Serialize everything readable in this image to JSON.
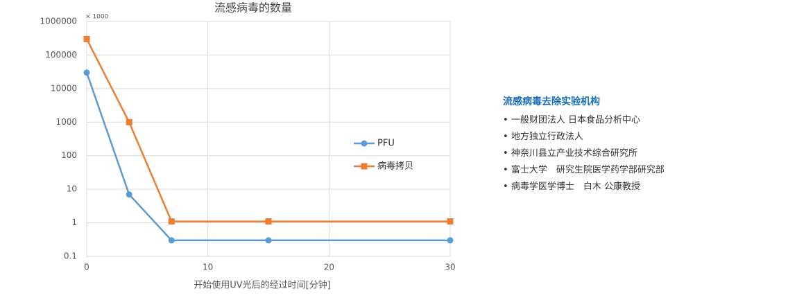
{
  "chart_data": {
    "type": "line",
    "title": "流感病毒的数量",
    "y_unit_note": "× 1000",
    "x_label": "开始使用UV光后的经过时间[分钟]",
    "x": [
      0,
      3.5,
      7,
      15,
      30
    ],
    "series": [
      {
        "name": "PFU",
        "color": "#5b9bd5",
        "marker": "circle",
        "values": [
          30000,
          7,
          0.3,
          0.3,
          0.3
        ]
      },
      {
        "name": "病毒拷贝",
        "color": "#ed7d31",
        "marker": "square",
        "values": [
          300000,
          1000,
          1.1,
          1.1,
          1.1
        ]
      }
    ],
    "xlim": [
      0,
      30
    ],
    "xticks": [
      0,
      10,
      20,
      30
    ],
    "ylim": [
      0.1,
      1000000
    ],
    "yticks": [
      0.1,
      1,
      10,
      100,
      1000,
      10000,
      100000,
      1000000
    ],
    "ylog": true,
    "grid": true,
    "legend": "center-right"
  },
  "panel": {
    "title": "流感病毒去除实验机构",
    "items": [
      "一般财团法人 日本食品分析中心",
      "地方独立行政法人",
      "神奈川县立产业技术综合研究所",
      "富士大学　研究生院医学药学部研究部",
      "病毒学医学博士　白木 公康教授"
    ]
  }
}
